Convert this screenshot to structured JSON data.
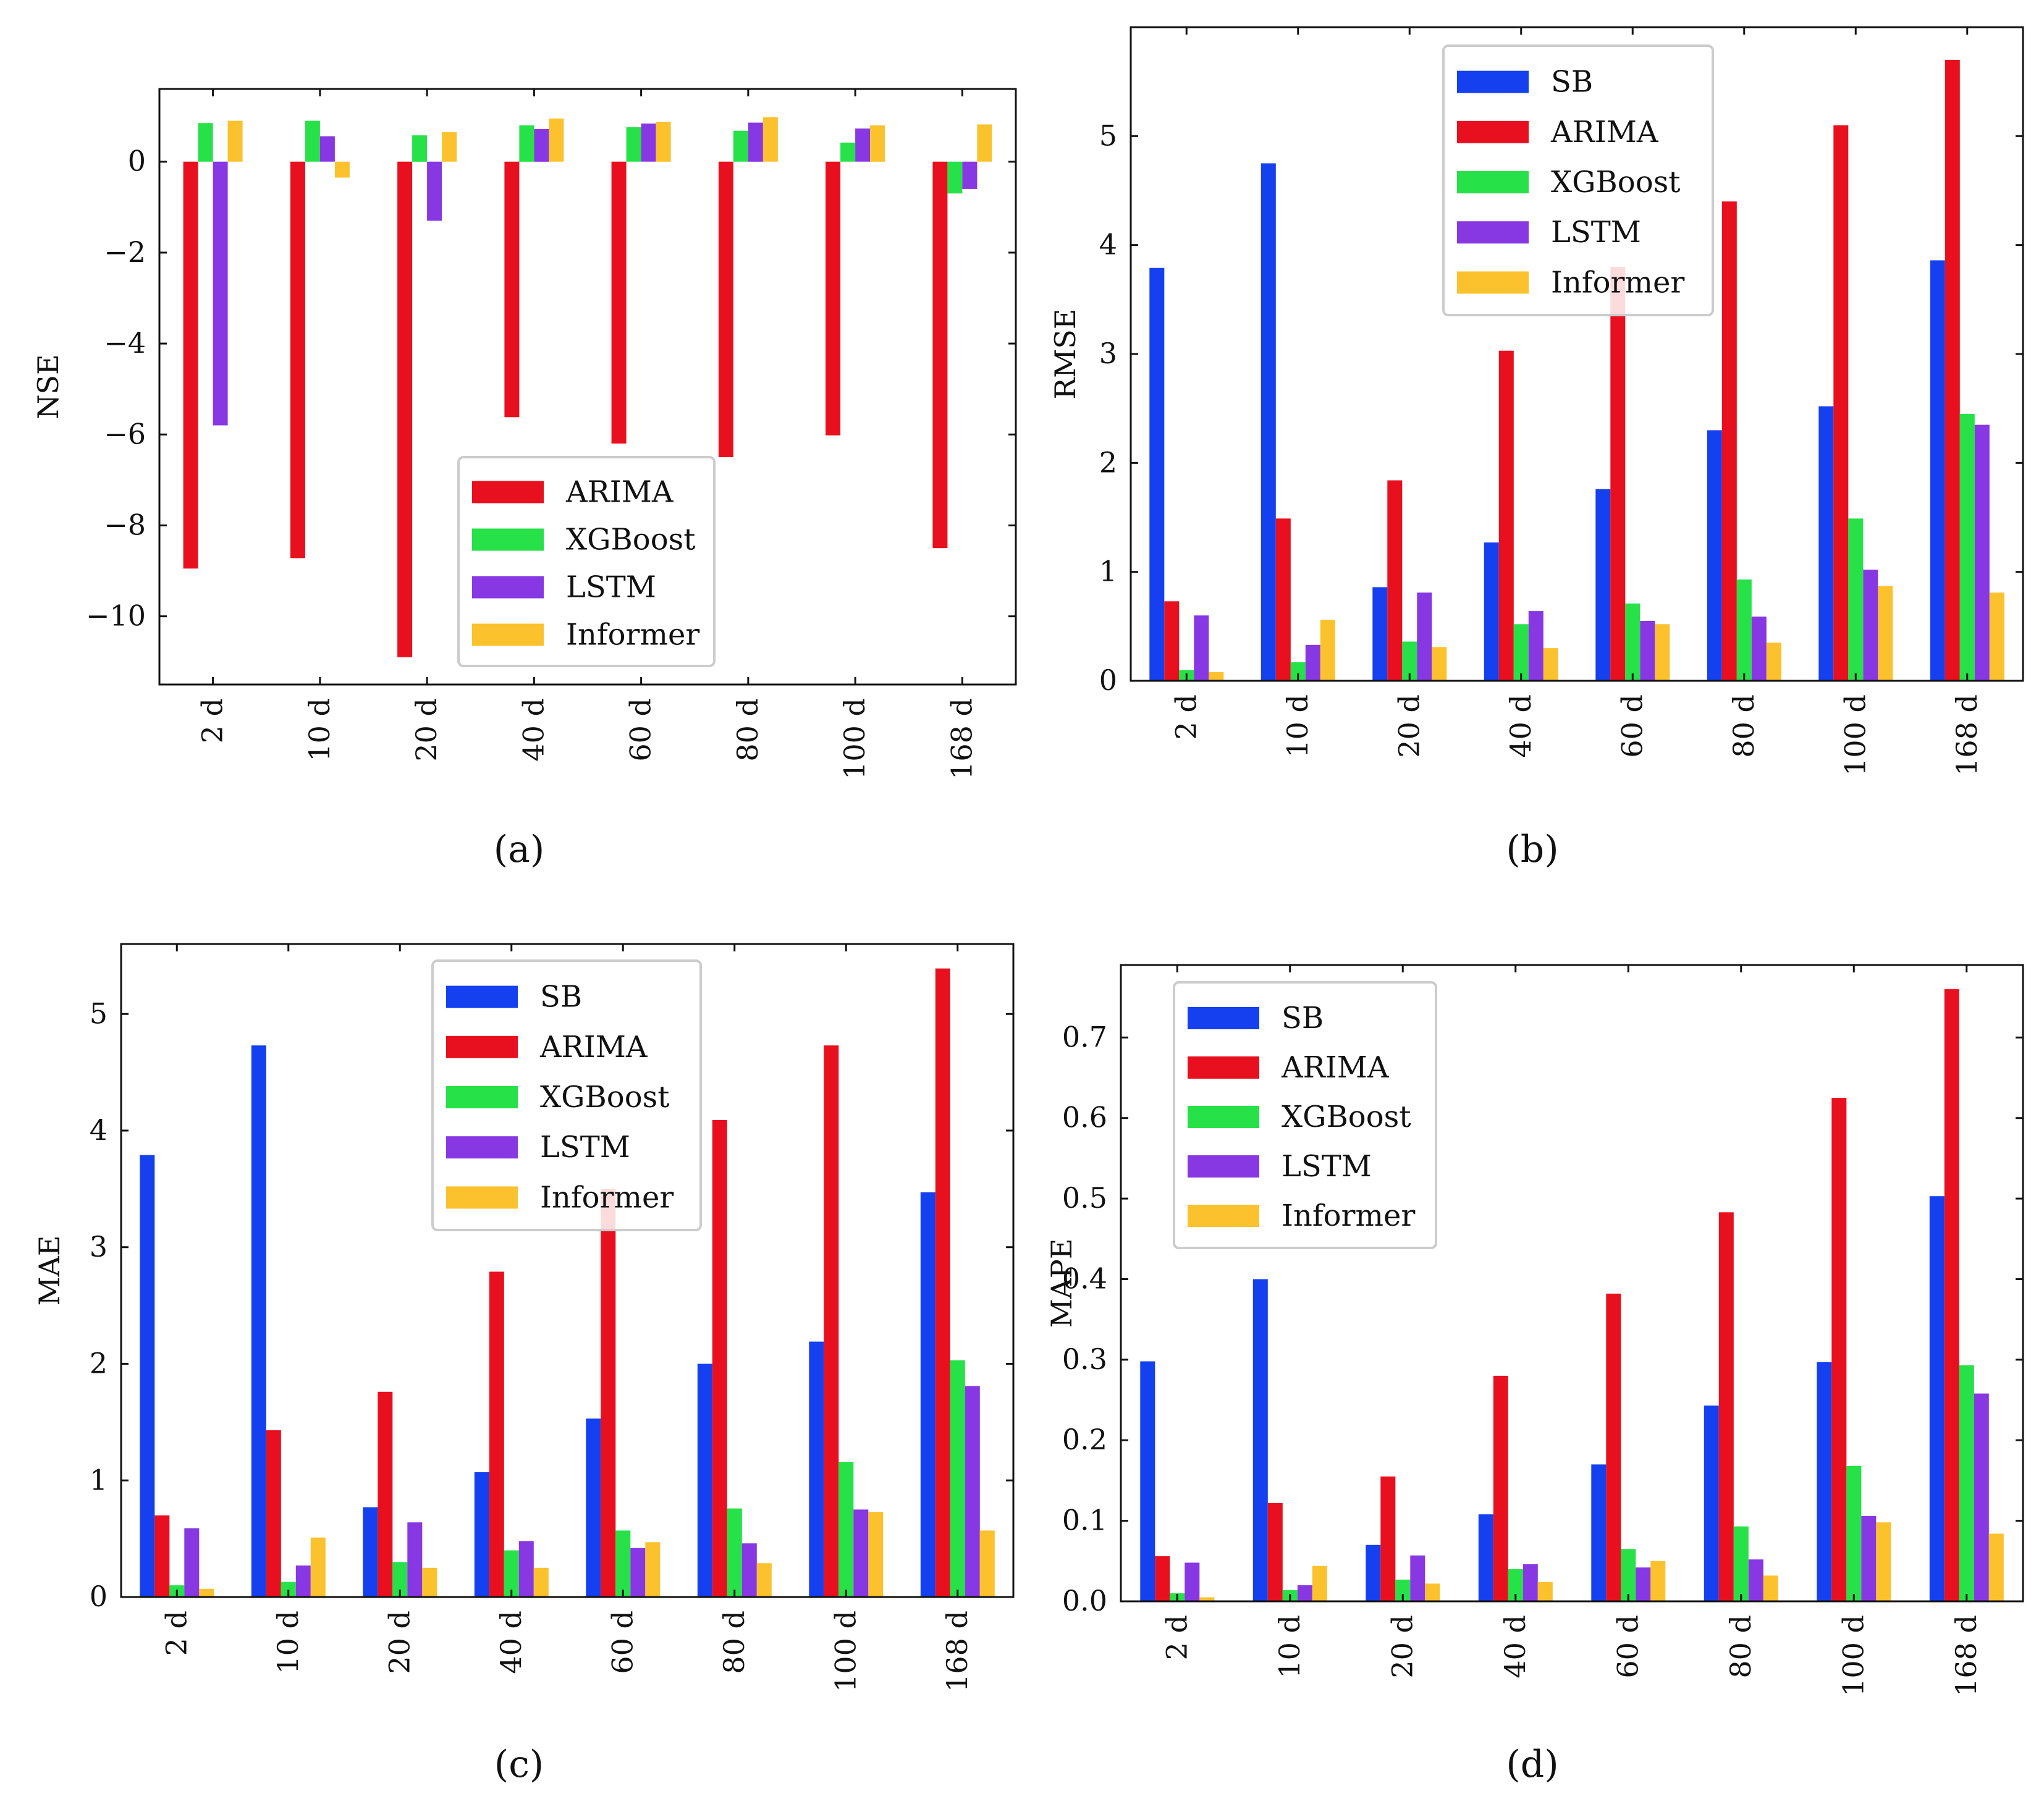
{
  "figure": {
    "series_colors": {
      "SB": "#1440f0",
      "ARIMA": "#e8101e",
      "XGBoost": "#27e148",
      "LSTM": "#8838e2",
      "Informer": "#fbc22e"
    }
  },
  "chart_data": [
    {
      "id": "a",
      "type": "bar",
      "caption": "(a)",
      "ylabel": "NSE",
      "ylim": [
        -11.5,
        1.6
      ],
      "yticks": [
        0,
        -2,
        -4,
        -6,
        -8,
        -10
      ],
      "ytick_labels": [
        "0",
        "−2",
        "−4",
        "−6",
        "−8",
        "−10"
      ],
      "categories": [
        "2 d",
        "10 d",
        "20 d",
        "40 d",
        "60 d",
        "80 d",
        "100 d",
        "168 d"
      ],
      "legend_position": "lower-right",
      "series": [
        {
          "name": "ARIMA",
          "values": [
            -8.95,
            -8.72,
            -10.9,
            -5.62,
            -6.2,
            -6.5,
            -6.02,
            -8.5
          ]
        },
        {
          "name": "XGBoost",
          "values": [
            0.85,
            0.9,
            0.58,
            0.8,
            0.76,
            0.68,
            0.42,
            -0.7
          ]
        },
        {
          "name": "LSTM",
          "values": [
            -5.8,
            0.56,
            -1.3,
            0.72,
            0.84,
            0.86,
            0.73,
            -0.6
          ]
        },
        {
          "name": "Informer",
          "values": [
            0.9,
            -0.35,
            0.65,
            0.95,
            0.88,
            0.98,
            0.8,
            0.82
          ]
        }
      ]
    },
    {
      "id": "b",
      "type": "bar",
      "caption": "(b)",
      "ylabel": "RMSE",
      "ylim": [
        0,
        6.0
      ],
      "yticks": [
        0,
        1,
        2,
        3,
        4,
        5
      ],
      "ytick_labels": [
        "0",
        "1",
        "2",
        "3",
        "4",
        "5"
      ],
      "categories": [
        "2 d",
        "10 d",
        "20 d",
        "40 d",
        "60 d",
        "80 d",
        "100 d",
        "168 d"
      ],
      "legend_position": "upper-center",
      "series": [
        {
          "name": "SB",
          "values": [
            3.79,
            4.75,
            0.86,
            1.27,
            1.76,
            2.3,
            2.52,
            3.86
          ]
        },
        {
          "name": "ARIMA",
          "values": [
            0.73,
            1.49,
            1.84,
            3.03,
            3.8,
            4.4,
            5.1,
            5.7
          ]
        },
        {
          "name": "XGBoost",
          "values": [
            0.1,
            0.17,
            0.36,
            0.52,
            0.71,
            0.93,
            1.49,
            2.45
          ]
        },
        {
          "name": "LSTM",
          "values": [
            0.6,
            0.33,
            0.81,
            0.64,
            0.55,
            0.59,
            1.02,
            2.35
          ]
        },
        {
          "name": "Informer",
          "values": [
            0.08,
            0.56,
            0.31,
            0.3,
            0.52,
            0.35,
            0.87,
            0.81
          ]
        }
      ]
    },
    {
      "id": "c",
      "type": "bar",
      "caption": "(c)",
      "ylabel": "MAE",
      "ylim": [
        0,
        5.6
      ],
      "yticks": [
        0,
        1,
        2,
        3,
        4,
        5
      ],
      "ytick_labels": [
        "0",
        "1",
        "2",
        "3",
        "4",
        "5"
      ],
      "categories": [
        "2 d",
        "10 d",
        "20 d",
        "40 d",
        "60 d",
        "80 d",
        "100 d",
        "168 d"
      ],
      "legend_position": "upper-center",
      "series": [
        {
          "name": "SB",
          "values": [
            3.79,
            4.73,
            0.77,
            1.07,
            1.53,
            2.0,
            2.19,
            3.47
          ]
        },
        {
          "name": "ARIMA",
          "values": [
            0.7,
            1.43,
            1.76,
            2.79,
            3.5,
            4.09,
            4.73,
            5.39
          ]
        },
        {
          "name": "XGBoost",
          "values": [
            0.1,
            0.13,
            0.3,
            0.4,
            0.57,
            0.76,
            1.16,
            2.03
          ]
        },
        {
          "name": "LSTM",
          "values": [
            0.59,
            0.27,
            0.64,
            0.48,
            0.42,
            0.46,
            0.75,
            1.81
          ]
        },
        {
          "name": "Informer",
          "values": [
            0.07,
            0.51,
            0.25,
            0.25,
            0.47,
            0.29,
            0.73,
            0.57
          ]
        }
      ]
    },
    {
      "id": "d",
      "type": "bar",
      "caption": "(d)",
      "ylabel": "MAPE",
      "ylim": [
        0,
        0.79
      ],
      "yticks": [
        0,
        0.1,
        0.2,
        0.3,
        0.4,
        0.5,
        0.6,
        0.7
      ],
      "ytick_labels": [
        "0.0",
        "0.1",
        "0.2",
        "0.3",
        "0.4",
        "0.5",
        "0.6",
        "0.7"
      ],
      "categories": [
        "2 d",
        "10 d",
        "20 d",
        "40 d",
        "60 d",
        "80 d",
        "100 d",
        "168 d"
      ],
      "legend_position": "upper-left",
      "series": [
        {
          "name": "SB",
          "values": [
            0.298,
            0.4,
            0.07,
            0.108,
            0.17,
            0.243,
            0.297,
            0.503
          ]
        },
        {
          "name": "ARIMA",
          "values": [
            0.056,
            0.122,
            0.155,
            0.28,
            0.382,
            0.483,
            0.625,
            0.76
          ]
        },
        {
          "name": "XGBoost",
          "values": [
            0.01,
            0.014,
            0.027,
            0.04,
            0.065,
            0.093,
            0.168,
            0.293
          ]
        },
        {
          "name": "LSTM",
          "values": [
            0.048,
            0.02,
            0.057,
            0.046,
            0.042,
            0.052,
            0.106,
            0.258
          ]
        },
        {
          "name": "Informer",
          "values": [
            0.005,
            0.044,
            0.022,
            0.024,
            0.05,
            0.032,
            0.098,
            0.084
          ]
        }
      ]
    }
  ]
}
